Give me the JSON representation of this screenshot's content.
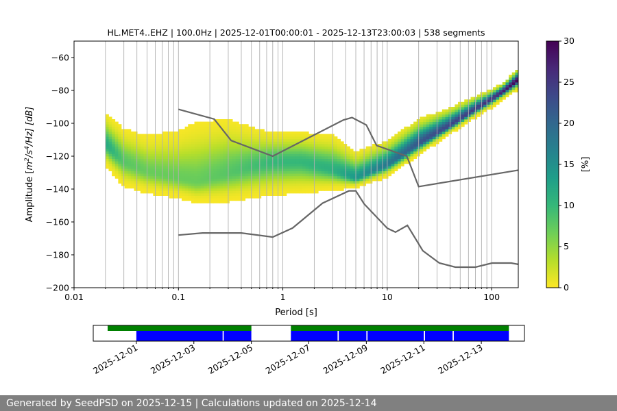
{
  "chart_data": [
    {
      "type": "heatmap",
      "title": "HL.MET4..EHZ | 100.0Hz | 2025-12-01T00:00:01 - 2025-12-13T23:00:03 | 538 segments",
      "xlabel": "Period [s]",
      "ylabel_html": "Amplitude [m²/s⁴/Hz] [dB]",
      "ylabel_main": "Amplitude [",
      "ylabel_m": "m",
      "ylabel_sup1": "2",
      "ylabel_s": "/s",
      "ylabel_sup2": "4",
      "ylabel_tail": "/Hz] [dB]",
      "x_scale": "log",
      "xlim": [
        0.01,
        180
      ],
      "ylim": [
        -200,
        -50
      ],
      "x_ticks": [
        {
          "value": 0.01,
          "label": "0.01"
        },
        {
          "value": 0.1,
          "label": "0.1"
        },
        {
          "value": 1,
          "label": "1"
        },
        {
          "value": 10,
          "label": "10"
        },
        {
          "value": 100,
          "label": "100"
        }
      ],
      "y_ticks": [
        {
          "value": -200,
          "label": "−200"
        },
        {
          "value": -180,
          "label": "−180"
        },
        {
          "value": -160,
          "label": "−160"
        },
        {
          "value": -140,
          "label": "−140"
        },
        {
          "value": -120,
          "label": "−120"
        },
        {
          "value": -100,
          "label": "−100"
        },
        {
          "value": -80,
          "label": "−80"
        },
        {
          "value": -60,
          "label": "−60"
        }
      ],
      "grid_periods": [
        0.02,
        0.03,
        0.04,
        0.05,
        0.06,
        0.07,
        0.08,
        0.09,
        0.1,
        0.2,
        0.3,
        0.4,
        0.5,
        0.6,
        0.7,
        0.8,
        0.9,
        1,
        2,
        3,
        4,
        5,
        6,
        7,
        8,
        9,
        10,
        20,
        30,
        40,
        50,
        60,
        70,
        80,
        90,
        100
      ],
      "grid": "vertical",
      "colorbar": {
        "label": "[%]",
        "min": 0,
        "max": 30,
        "ticks": [
          {
            "value": 0,
            "label": "0"
          },
          {
            "value": 5,
            "label": "5"
          },
          {
            "value": 10,
            "label": "10"
          },
          {
            "value": 15,
            "label": "15"
          },
          {
            "value": 20,
            "label": "20"
          },
          {
            "value": 25,
            "label": "25"
          },
          {
            "value": 30,
            "label": "30"
          }
        ],
        "colormap": [
          "#fde725",
          "#b5de2b",
          "#6ece58",
          "#35b779",
          "#1f9e89",
          "#26828e",
          "#31688e",
          "#3e4989",
          "#482878",
          "#440154"
        ]
      },
      "density_profile": [
        {
          "period": 0.02,
          "mode": -113,
          "upper": -95,
          "lower": -125,
          "peak": 12
        },
        {
          "period": 0.03,
          "mode": -124,
          "upper": -104,
          "lower": -138,
          "peak": 8
        },
        {
          "period": 0.05,
          "mode": -130,
          "upper": -108,
          "lower": -142,
          "peak": 7
        },
        {
          "period": 0.1,
          "mode": -134,
          "upper": -105,
          "lower": -145,
          "peak": 7
        },
        {
          "period": 0.15,
          "mode": -136,
          "upper": -100,
          "lower": -148,
          "peak": 7
        },
        {
          "period": 0.3,
          "mode": -131,
          "upper": -98,
          "lower": -147,
          "peak": 8
        },
        {
          "period": 0.5,
          "mode": -127,
          "upper": -103,
          "lower": -145,
          "peak": 9
        },
        {
          "period": 0.8,
          "mode": -124,
          "upper": -106,
          "lower": -143,
          "peak": 10
        },
        {
          "period": 1.5,
          "mode": -124,
          "upper": -106,
          "lower": -142,
          "peak": 10
        },
        {
          "period": 3,
          "mode": -129,
          "upper": -108,
          "lower": -140,
          "peak": 11
        },
        {
          "period": 5,
          "mode": -134,
          "upper": -118,
          "lower": -139,
          "peak": 14
        },
        {
          "period": 10,
          "mode": -126,
          "upper": -111,
          "lower": -132,
          "peak": 18
        },
        {
          "period": 20,
          "mode": -113,
          "upper": -98,
          "lower": -119,
          "peak": 22
        },
        {
          "period": 40,
          "mode": -102,
          "upper": -91,
          "lower": -106,
          "peak": 24
        },
        {
          "period": 70,
          "mode": -92,
          "upper": -84,
          "lower": -96,
          "peak": 25
        },
        {
          "period": 100,
          "mode": -86,
          "upper": -80,
          "lower": -90,
          "peak": 26
        },
        {
          "period": 130,
          "mode": -81,
          "upper": -76,
          "lower": -85,
          "peak": 28
        },
        {
          "period": 180,
          "mode": -74,
          "upper": -67,
          "lower": -79,
          "peak": 30
        }
      ],
      "nhnm": [
        [
          0.1,
          -91.5
        ],
        [
          0.22,
          -97.4
        ],
        [
          0.32,
          -110.5
        ],
        [
          0.8,
          -120
        ],
        [
          3.8,
          -98
        ],
        [
          4.6,
          -96.5
        ],
        [
          6.3,
          -101
        ],
        [
          7.9,
          -113.5
        ],
        [
          15.4,
          -120
        ],
        [
          20,
          -138.5
        ],
        [
          180,
          -128.5
        ]
      ],
      "nlnm": [
        [
          0.1,
          -168
        ],
        [
          0.17,
          -166.7
        ],
        [
          0.4,
          -166.7
        ],
        [
          0.8,
          -169.2
        ],
        [
          1.24,
          -163.7
        ],
        [
          2.4,
          -148.6
        ],
        [
          4.3,
          -141.1
        ],
        [
          5,
          -141.1
        ],
        [
          6,
          -149
        ],
        [
          10,
          -163.8
        ],
        [
          12,
          -166.2
        ],
        [
          15.6,
          -162.1
        ],
        [
          21.9,
          -177.5
        ],
        [
          31.6,
          -185
        ],
        [
          45,
          -187.5
        ],
        [
          70,
          -187.5
        ],
        [
          101,
          -185
        ],
        [
          154,
          -185
        ],
        [
          180,
          -185.8
        ]
      ],
      "noise_model_color": "#666666"
    },
    {
      "type": "bar",
      "orientation": "timeline",
      "x_ticks": [
        "2025-12-01",
        "2025-12-03",
        "2025-12-05",
        "2025-12-07",
        "2025-12-09",
        "2025-12-11",
        "2025-12-13"
      ],
      "xlim": [
        "2025-11-29T12:00",
        "2025-12-14T12:00"
      ],
      "tracks": [
        {
          "color": "#008000",
          "segments": [
            [
              "2025-11-30T00:00",
              "2025-12-05T00:00"
            ],
            [
              "2025-12-06T09:00",
              "2025-12-13T23:00"
            ]
          ]
        },
        {
          "color": "#0000ff",
          "segments": [
            [
              "2025-12-01T00:00",
              "2025-12-04T00:00"
            ],
            [
              "2025-12-04T01:00",
              "2025-12-05T00:00"
            ],
            [
              "2025-12-06T09:00",
              "2025-12-08T00:00"
            ],
            [
              "2025-12-08T01:00",
              "2025-12-09T00:00"
            ],
            [
              "2025-12-09T01:00",
              "2025-12-11T00:00"
            ],
            [
              "2025-12-11T01:00",
              "2025-12-12T00:00"
            ],
            [
              "2025-12-12T01:00",
              "2025-12-13T23:00"
            ]
          ]
        }
      ]
    }
  ],
  "footer": {
    "text": "Generated by SeedPSD on 2025-12-15 | Calculations updated on 2025-12-14"
  }
}
